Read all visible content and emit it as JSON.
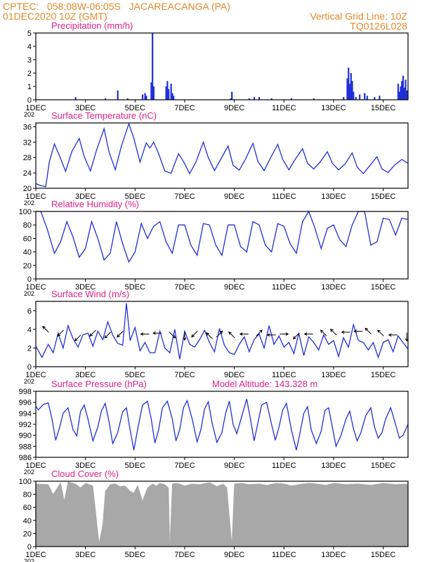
{
  "header": {
    "station_line": "CPTEC:   058:08W-06:05S   JACAREACANGA (PA)",
    "date_line": "01DEC2020 10Z (GMT)",
    "grid_note": "Vertical Grid Line: 10Z",
    "run_code": "TQ0126L028",
    "model_altitude": "Model Altitude: 143.328 m"
  },
  "colors": {
    "header": "#e08a2a",
    "panel_title": "#e0208a",
    "series": "#2030d8",
    "cloud": "#a8a8a8",
    "wind_arrow": "#000000"
  },
  "x_axis": {
    "ticks": [
      "1DEC",
      "3DEC",
      "5DEC",
      "7DEC",
      "9DEC",
      "11DEC",
      "13DEC",
      "15DEC"
    ],
    "tick_days": [
      1,
      3,
      5,
      7,
      9,
      11,
      13,
      15
    ],
    "range_days": [
      1,
      16
    ],
    "year_hint": "202"
  },
  "chart_data": [
    {
      "type": "bar",
      "title": "Precipitation (mm/h)",
      "ylim": [
        0,
        5
      ],
      "yticks": [
        0,
        1,
        2,
        3,
        4,
        5
      ],
      "bars": [
        {
          "x": 2.6,
          "y": 0.2
        },
        {
          "x": 3.8,
          "y": 0.1
        },
        {
          "x": 4.3,
          "y": 0.7
        },
        {
          "x": 4.7,
          "y": 0.1
        },
        {
          "x": 5.3,
          "y": 0.4
        },
        {
          "x": 5.4,
          "y": 0.5
        },
        {
          "x": 5.45,
          "y": 0.3
        },
        {
          "x": 5.65,
          "y": 1.3
        },
        {
          "x": 5.7,
          "y": 5.0
        },
        {
          "x": 5.75,
          "y": 1.0
        },
        {
          "x": 6.25,
          "y": 1.0
        },
        {
          "x": 6.3,
          "y": 1.4
        },
        {
          "x": 6.35,
          "y": 0.8
        },
        {
          "x": 6.45,
          "y": 1.2
        },
        {
          "x": 6.5,
          "y": 0.5
        },
        {
          "x": 6.55,
          "y": 0.3
        },
        {
          "x": 8.85,
          "y": 0.1
        },
        {
          "x": 8.9,
          "y": 0.6
        },
        {
          "x": 9.6,
          "y": 0.1
        },
        {
          "x": 9.8,
          "y": 0.2
        },
        {
          "x": 10.0,
          "y": 0.2
        },
        {
          "x": 10.5,
          "y": 0.1
        },
        {
          "x": 11.3,
          "y": 0.1
        },
        {
          "x": 12.2,
          "y": 0.1
        },
        {
          "x": 13.4,
          "y": 0.2
        },
        {
          "x": 13.55,
          "y": 1.6
        },
        {
          "x": 13.6,
          "y": 2.4
        },
        {
          "x": 13.65,
          "y": 1.2
        },
        {
          "x": 13.7,
          "y": 2.0
        },
        {
          "x": 13.75,
          "y": 1.4
        },
        {
          "x": 13.8,
          "y": 0.6
        },
        {
          "x": 13.9,
          "y": 0.2
        },
        {
          "x": 14.05,
          "y": 0.4
        },
        {
          "x": 14.25,
          "y": 0.5
        },
        {
          "x": 14.35,
          "y": 0.3
        },
        {
          "x": 14.65,
          "y": 0.2
        },
        {
          "x": 14.85,
          "y": 0.3
        },
        {
          "x": 15.6,
          "y": 1.2
        },
        {
          "x": 15.65,
          "y": 0.6
        },
        {
          "x": 15.7,
          "y": 1.0
        },
        {
          "x": 15.75,
          "y": 1.4
        },
        {
          "x": 15.8,
          "y": 1.8
        },
        {
          "x": 15.85,
          "y": 0.9
        },
        {
          "x": 15.9,
          "y": 1.5
        },
        {
          "x": 15.95,
          "y": 0.7
        }
      ]
    },
    {
      "type": "line",
      "title": "Surface Temperature (nC)",
      "ylim": [
        20,
        37
      ],
      "yticks": [
        20,
        24,
        28,
        32,
        36
      ],
      "x": [
        1.0,
        1.2,
        1.4,
        1.55,
        1.75,
        1.95,
        2.2,
        2.45,
        2.75,
        2.95,
        3.2,
        3.45,
        3.75,
        3.95,
        4.2,
        4.45,
        4.75,
        4.95,
        5.2,
        5.45,
        5.6,
        5.75,
        5.95,
        6.2,
        6.45,
        6.75,
        6.95,
        7.2,
        7.45,
        7.75,
        7.95,
        8.2,
        8.45,
        8.75,
        8.95,
        9.2,
        9.45,
        9.75,
        9.95,
        10.2,
        10.45,
        10.75,
        10.95,
        11.2,
        11.45,
        11.75,
        11.95,
        12.2,
        12.45,
        12.75,
        12.95,
        13.2,
        13.45,
        13.75,
        13.95,
        14.2,
        14.45,
        14.75,
        14.95,
        15.2,
        15.45,
        15.75,
        16.0
      ],
      "values": [
        21.2,
        20.7,
        20.4,
        27.0,
        31.5,
        28.5,
        24.4,
        29.5,
        33.0,
        28.3,
        24.5,
        30.0,
        35.5,
        29.5,
        24.8,
        31.0,
        36.8,
        33.0,
        26.8,
        31.8,
        30.5,
        32.0,
        29.0,
        24.5,
        23.9,
        29.0,
        27.0,
        23.8,
        26.8,
        32.0,
        28.0,
        24.6,
        27.5,
        31.0,
        26.0,
        24.7,
        27.6,
        31.7,
        27.0,
        24.6,
        27.8,
        31.4,
        27.5,
        24.8,
        27.5,
        30.3,
        26.5,
        25.0,
        26.8,
        29.5,
        26.5,
        24.8,
        26.2,
        29.2,
        25.5,
        23.8,
        25.8,
        28.2,
        25.0,
        24.1,
        26.0,
        27.5,
        26.5
      ]
    },
    {
      "type": "line",
      "title": "Relative Humidity (%)",
      "ylim": [
        0,
        100
      ],
      "yticks": [
        0,
        20,
        40,
        60,
        80,
        100
      ],
      "x": [
        1.0,
        1.2,
        1.45,
        1.75,
        2.0,
        2.25,
        2.5,
        2.75,
        3.0,
        3.25,
        3.5,
        3.75,
        4.0,
        4.25,
        4.5,
        4.75,
        5.0,
        5.25,
        5.5,
        5.75,
        6.0,
        6.25,
        6.5,
        6.75,
        7.0,
        7.25,
        7.5,
        7.75,
        8.0,
        8.25,
        8.5,
        8.75,
        9.0,
        9.25,
        9.5,
        9.75,
        10.0,
        10.25,
        10.5,
        10.75,
        11.0,
        11.25,
        11.5,
        11.75,
        12.0,
        12.25,
        12.5,
        12.75,
        13.0,
        13.25,
        13.5,
        13.75,
        14.0,
        14.25,
        14.5,
        14.75,
        15.0,
        15.25,
        15.5,
        15.75,
        16.0
      ],
      "values": [
        100,
        100,
        75,
        38,
        55,
        85,
        62,
        32,
        45,
        85,
        60,
        28,
        38,
        85,
        52,
        25,
        40,
        82,
        60,
        78,
        85,
        55,
        38,
        80,
        80,
        50,
        35,
        82,
        80,
        50,
        35,
        80,
        80,
        48,
        40,
        85,
        80,
        50,
        40,
        82,
        78,
        52,
        38,
        85,
        100,
        75,
        45,
        75,
        80,
        58,
        48,
        80,
        100,
        100,
        50,
        55,
        90,
        88,
        65,
        90,
        88
      ]
    },
    {
      "type": "line",
      "title": "Surface Wind (m/s)",
      "ylim": [
        0,
        7
      ],
      "yticks": [
        0,
        2,
        4,
        6
      ],
      "x": [
        1.0,
        1.25,
        1.5,
        1.7,
        1.9,
        2.1,
        2.3,
        2.5,
        2.7,
        2.9,
        3.1,
        3.3,
        3.5,
        3.7,
        3.9,
        4.1,
        4.3,
        4.5,
        4.65,
        4.8,
        5.0,
        5.2,
        5.4,
        5.6,
        5.8,
        6.0,
        6.2,
        6.4,
        6.6,
        6.8,
        7.0,
        7.2,
        7.4,
        7.6,
        7.8,
        8.0,
        8.2,
        8.4,
        8.6,
        8.8,
        9.0,
        9.2,
        9.4,
        9.6,
        9.8,
        10.0,
        10.2,
        10.4,
        10.6,
        10.8,
        11.0,
        11.2,
        11.4,
        11.6,
        11.8,
        12.0,
        12.2,
        12.4,
        12.6,
        12.8,
        13.0,
        13.2,
        13.4,
        13.6,
        13.8,
        14.0,
        14.2,
        14.4,
        14.6,
        14.8,
        15.0,
        15.2,
        15.4,
        15.6,
        15.8,
        16.0
      ],
      "values": [
        2.2,
        1.0,
        2.4,
        1.5,
        3.6,
        2.0,
        4.4,
        3.0,
        2.1,
        3.4,
        3.6,
        2.2,
        3.8,
        2.9,
        4.8,
        3.4,
        2.5,
        2.3,
        6.8,
        2.8,
        4.2,
        1.7,
        2.6,
        1.5,
        1.5,
        3.8,
        2.0,
        1.5,
        4.0,
        0.8,
        3.8,
        2.4,
        2.1,
        2.9,
        3.9,
        2.6,
        1.6,
        4.1,
        2.3,
        1.5,
        1.3,
        2.4,
        3.2,
        1.6,
        2.9,
        3.5,
        2.0,
        4.4,
        2.4,
        3.3,
        2.1,
        2.6,
        1.4,
        3.6,
        1.2,
        3.2,
        2.6,
        1.8,
        3.4,
        2.4,
        2.8,
        1.1,
        3.1,
        2.1,
        4.5,
        2.8,
        2.6,
        1.8,
        2.6,
        1.0,
        2.6,
        2.9,
        1.6,
        3.3,
        2.6,
        1.9
      ],
      "arrows": [
        {
          "x": 1.4,
          "y": 4.0,
          "dir": "NW"
        },
        {
          "x": 2.0,
          "y": 3.6,
          "dir": "SW"
        },
        {
          "x": 2.7,
          "y": 3.1,
          "dir": "SW"
        },
        {
          "x": 3.3,
          "y": 3.6,
          "dir": "SW"
        },
        {
          "x": 3.9,
          "y": 3.4,
          "dir": "SW"
        },
        {
          "x": 4.4,
          "y": 3.5,
          "dir": "SW"
        },
        {
          "x": 5.4,
          "y": 3.5,
          "dir": "W"
        },
        {
          "x": 5.9,
          "y": 3.6,
          "dir": "W"
        },
        {
          "x": 6.5,
          "y": 3.4,
          "dir": "SE"
        },
        {
          "x": 7.0,
          "y": 3.3,
          "dir": "S"
        },
        {
          "x": 7.4,
          "y": 3.5,
          "dir": "SW"
        },
        {
          "x": 8.0,
          "y": 3.3,
          "dir": "NW"
        },
        {
          "x": 8.4,
          "y": 3.5,
          "dir": "NE"
        },
        {
          "x": 8.9,
          "y": 3.4,
          "dir": "NW"
        },
        {
          "x": 9.4,
          "y": 3.5,
          "dir": "W"
        },
        {
          "x": 10.0,
          "y": 3.6,
          "dir": "NE"
        },
        {
          "x": 10.5,
          "y": 3.4,
          "dir": "W"
        },
        {
          "x": 11.0,
          "y": 3.5,
          "dir": "E"
        },
        {
          "x": 11.5,
          "y": 3.3,
          "dir": "SW"
        },
        {
          "x": 12.0,
          "y": 3.5,
          "dir": "W"
        },
        {
          "x": 12.6,
          "y": 3.6,
          "dir": "NW"
        },
        {
          "x": 13.0,
          "y": 3.7,
          "dir": "NW"
        },
        {
          "x": 13.5,
          "y": 3.7,
          "dir": "W"
        },
        {
          "x": 14.0,
          "y": 3.8,
          "dir": "W"
        },
        {
          "x": 14.4,
          "y": 3.8,
          "dir": "NW"
        },
        {
          "x": 14.9,
          "y": 3.6,
          "dir": "NW"
        },
        {
          "x": 15.4,
          "y": 3.4,
          "dir": "W"
        },
        {
          "x": 15.95,
          "y": 3.2,
          "dir": "S"
        }
      ]
    },
    {
      "type": "line",
      "title": "Surface Pressure (hPa)",
      "ylim": [
        986,
        998
      ],
      "yticks": [
        986,
        988,
        990,
        992,
        994,
        996,
        998
      ],
      "x": [
        1.0,
        1.1,
        1.3,
        1.5,
        1.65,
        1.8,
        1.95,
        2.1,
        2.3,
        2.5,
        2.65,
        2.8,
        2.95,
        3.1,
        3.3,
        3.5,
        3.65,
        3.8,
        3.95,
        4.1,
        4.3,
        4.5,
        4.65,
        4.8,
        4.95,
        5.1,
        5.3,
        5.5,
        5.65,
        5.8,
        5.95,
        6.1,
        6.3,
        6.5,
        6.65,
        6.8,
        6.95,
        7.1,
        7.3,
        7.5,
        7.65,
        7.8,
        7.95,
        8.1,
        8.3,
        8.5,
        8.65,
        8.8,
        8.95,
        9.1,
        9.3,
        9.5,
        9.65,
        9.8,
        9.95,
        10.1,
        10.3,
        10.5,
        10.65,
        10.8,
        10.95,
        11.1,
        11.3,
        11.5,
        11.65,
        11.8,
        11.95,
        12.1,
        12.3,
        12.5,
        12.65,
        12.8,
        12.95,
        13.1,
        13.3,
        13.5,
        13.65,
        13.8,
        13.95,
        14.1,
        14.3,
        14.5,
        14.65,
        14.8,
        14.95,
        15.1,
        15.3,
        15.5,
        15.65,
        15.8,
        16.0
      ],
      "values": [
        995.3,
        994.6,
        995.6,
        995.9,
        993.0,
        989.1,
        991.3,
        994.0,
        995.0,
        991.0,
        989.9,
        994.3,
        995.5,
        993.0,
        989.0,
        991.5,
        994.5,
        995.8,
        992.5,
        988.5,
        990.5,
        994.3,
        995.0,
        991.0,
        987.3,
        991.0,
        995.5,
        996.2,
        993.0,
        988.6,
        991.0,
        995.0,
        996.2,
        993.0,
        989.0,
        991.0,
        995.0,
        996.3,
        993.0,
        988.8,
        991.0,
        994.8,
        996.1,
        992.3,
        988.7,
        990.5,
        994.0,
        996.2,
        992.0,
        990.3,
        993.5,
        996.6,
        993.0,
        989.0,
        992.2,
        995.5,
        996.0,
        992.0,
        989.1,
        991.5,
        994.6,
        995.8,
        991.0,
        987.3,
        990.5,
        994.0,
        995.2,
        991.0,
        988.5,
        990.7,
        994.5,
        995.0,
        991.5,
        988.0,
        990.0,
        993.0,
        994.4,
        991.2,
        989.0,
        990.5,
        993.6,
        995.0,
        991.5,
        989.5,
        990.5,
        993.0,
        995.0,
        992.0,
        989.5,
        990.0,
        992.0
      ]
    },
    {
      "type": "area",
      "title": "Cloud Cover (%)",
      "ylim": [
        0,
        100
      ],
      "yticks": [
        0,
        20,
        40,
        60,
        80,
        100
      ],
      "x": [
        1.0,
        1.5,
        1.7,
        2.0,
        2.15,
        2.3,
        2.6,
        2.8,
        3.0,
        3.3,
        3.45,
        3.55,
        3.7,
        3.8,
        4.0,
        4.2,
        4.4,
        4.6,
        4.8,
        4.95,
        5.1,
        5.3,
        5.5,
        5.7,
        5.85,
        6.0,
        6.2,
        6.35,
        6.4,
        6.5,
        6.7,
        7.0,
        7.3,
        7.6,
        8.0,
        8.3,
        8.55,
        8.7,
        8.9,
        9.0,
        9.3,
        9.6,
        10.0,
        10.3,
        10.7,
        11.0,
        11.3,
        11.6,
        12.0,
        12.3,
        12.7,
        13.0,
        13.5,
        14.0,
        14.5,
        15.0,
        15.5,
        16.0
      ],
      "values": [
        96,
        95,
        80,
        98,
        70,
        99,
        96,
        90,
        97,
        93,
        40,
        5,
        35,
        85,
        95,
        96,
        92,
        93,
        85,
        82,
        94,
        70,
        90,
        96,
        93,
        97,
        95,
        90,
        1,
        96,
        97,
        93,
        96,
        95,
        98,
        92,
        96,
        90,
        4,
        96,
        97,
        95,
        96,
        94,
        97,
        96,
        93,
        95,
        97,
        96,
        94,
        97,
        95,
        96,
        94,
        97,
        95,
        96
      ]
    }
  ]
}
